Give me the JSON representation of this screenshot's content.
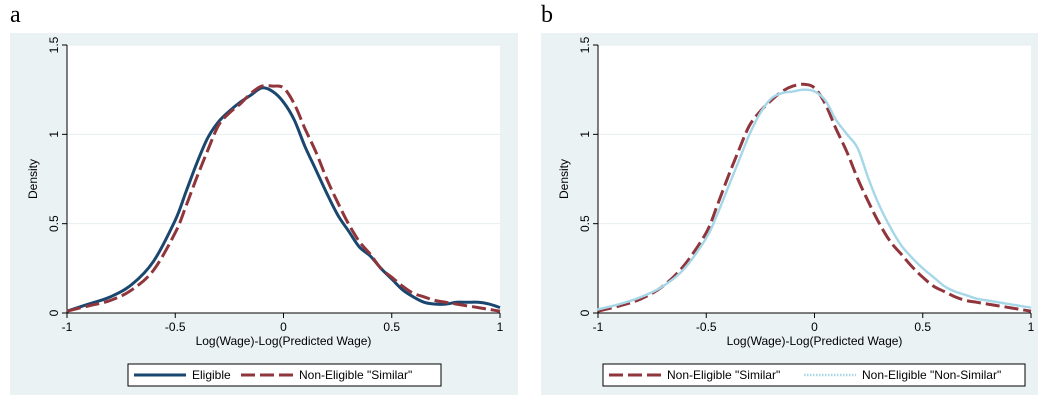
{
  "panels": [
    {
      "letter": "a"
    },
    {
      "letter": "b"
    }
  ],
  "chart_data": [
    {
      "type": "line",
      "panel": "a",
      "xlabel": "Log(Wage)-Log(Predicted Wage)",
      "ylabel": "Density",
      "xlim": [
        -1,
        1
      ],
      "ylim": [
        0,
        1.5
      ],
      "xticks": [
        -1,
        -0.5,
        0,
        0.5,
        1
      ],
      "xtick_labels": [
        "-1",
        "-0.5",
        "0",
        "0.5",
        "1"
      ],
      "yticks": [
        0,
        0.5,
        1,
        1.5
      ],
      "ytick_labels": [
        "0",
        "0.5",
        "1",
        "1.5"
      ],
      "grid": true,
      "legend_position": "bottom",
      "colors": {
        "background": "#eaf2f3",
        "plot": "#ffffff",
        "grid": "#e6eeef"
      },
      "series": [
        {
          "name": "Eligible",
          "color": "#1a476f",
          "style": "solid",
          "x": [
            -1,
            -0.9,
            -0.8,
            -0.7,
            -0.6,
            -0.5,
            -0.45,
            -0.4,
            -0.35,
            -0.3,
            -0.25,
            -0.2,
            -0.15,
            -0.1,
            -0.05,
            0,
            0.05,
            0.1,
            0.15,
            0.2,
            0.25,
            0.3,
            0.35,
            0.4,
            0.45,
            0.5,
            0.55,
            0.6,
            0.65,
            0.7,
            0.75,
            0.8,
            0.85,
            0.9,
            0.95,
            1
          ],
          "y": [
            0.01,
            0.05,
            0.09,
            0.16,
            0.29,
            0.52,
            0.68,
            0.84,
            0.98,
            1.07,
            1.13,
            1.18,
            1.22,
            1.26,
            1.24,
            1.18,
            1.08,
            0.93,
            0.8,
            0.67,
            0.55,
            0.46,
            0.37,
            0.32,
            0.25,
            0.19,
            0.13,
            0.09,
            0.06,
            0.05,
            0.05,
            0.06,
            0.06,
            0.06,
            0.05,
            0.03
          ]
        },
        {
          "name": "Non-Eligible \"Similar\"",
          "color": "#90353b",
          "style": "dash",
          "x": [
            -1,
            -0.9,
            -0.8,
            -0.7,
            -0.6,
            -0.5,
            -0.45,
            -0.4,
            -0.35,
            -0.3,
            -0.25,
            -0.2,
            -0.15,
            -0.1,
            -0.05,
            0,
            0.05,
            0.1,
            0.15,
            0.2,
            0.25,
            0.3,
            0.35,
            0.4,
            0.45,
            0.5,
            0.55,
            0.6,
            0.65,
            0.7,
            0.75,
            0.8,
            0.85,
            0.9,
            0.95,
            1
          ],
          "y": [
            0.01,
            0.04,
            0.07,
            0.13,
            0.24,
            0.45,
            0.6,
            0.76,
            0.91,
            1.05,
            1.12,
            1.17,
            1.23,
            1.27,
            1.27,
            1.26,
            1.17,
            1.03,
            0.9,
            0.75,
            0.62,
            0.5,
            0.4,
            0.33,
            0.25,
            0.2,
            0.15,
            0.11,
            0.09,
            0.07,
            0.06,
            0.05,
            0.04,
            0.03,
            0.02,
            0.01
          ]
        }
      ]
    },
    {
      "type": "line",
      "panel": "b",
      "xlabel": "Log(Wage)-Log(Predicted Wage)",
      "ylabel": "Density",
      "xlim": [
        -1,
        1
      ],
      "ylim": [
        0,
        1.5
      ],
      "xticks": [
        -1,
        -0.5,
        0,
        0.5,
        1
      ],
      "xtick_labels": [
        "-1",
        "-0.5",
        "0",
        "0.5",
        "1"
      ],
      "yticks": [
        0,
        0.5,
        1,
        1.5
      ],
      "ytick_labels": [
        "0",
        "0.5",
        "1",
        "1.5"
      ],
      "grid": true,
      "legend_position": "bottom",
      "colors": {
        "background": "#eaf2f3",
        "plot": "#ffffff",
        "grid": "#e6eeef"
      },
      "series": [
        {
          "name": "Non-Eligible \"Similar\"",
          "color": "#90353b",
          "style": "dash",
          "x": [
            -1,
            -0.9,
            -0.8,
            -0.7,
            -0.6,
            -0.5,
            -0.45,
            -0.4,
            -0.35,
            -0.3,
            -0.25,
            -0.2,
            -0.15,
            -0.1,
            -0.05,
            0,
            0.05,
            0.1,
            0.15,
            0.2,
            0.25,
            0.3,
            0.35,
            0.4,
            0.45,
            0.5,
            0.55,
            0.6,
            0.65,
            0.7,
            0.75,
            0.8,
            0.85,
            0.9,
            0.95,
            1
          ],
          "y": [
            0.01,
            0.04,
            0.08,
            0.15,
            0.27,
            0.45,
            0.6,
            0.76,
            0.91,
            1.05,
            1.13,
            1.19,
            1.24,
            1.27,
            1.28,
            1.26,
            1.17,
            1.03,
            0.9,
            0.75,
            0.62,
            0.5,
            0.4,
            0.33,
            0.26,
            0.2,
            0.15,
            0.12,
            0.09,
            0.07,
            0.06,
            0.05,
            0.04,
            0.03,
            0.02,
            0.01
          ]
        },
        {
          "name": "Non-Eligible \"Non-Similar\"",
          "color": "#a6d7e8",
          "style": "dot",
          "x": [
            -1,
            -0.9,
            -0.8,
            -0.7,
            -0.6,
            -0.5,
            -0.45,
            -0.4,
            -0.35,
            -0.3,
            -0.25,
            -0.2,
            -0.15,
            -0.1,
            -0.05,
            0,
            0.05,
            0.1,
            0.15,
            0.2,
            0.25,
            0.3,
            0.35,
            0.4,
            0.45,
            0.5,
            0.55,
            0.6,
            0.65,
            0.7,
            0.75,
            0.8,
            0.85,
            0.9,
            0.95,
            1
          ],
          "y": [
            0.02,
            0.05,
            0.09,
            0.15,
            0.25,
            0.42,
            0.55,
            0.7,
            0.85,
            1.0,
            1.12,
            1.2,
            1.23,
            1.24,
            1.25,
            1.24,
            1.19,
            1.08,
            1.0,
            0.92,
            0.75,
            0.6,
            0.48,
            0.38,
            0.31,
            0.25,
            0.2,
            0.15,
            0.12,
            0.1,
            0.08,
            0.07,
            0.06,
            0.05,
            0.04,
            0.03
          ]
        }
      ]
    }
  ]
}
